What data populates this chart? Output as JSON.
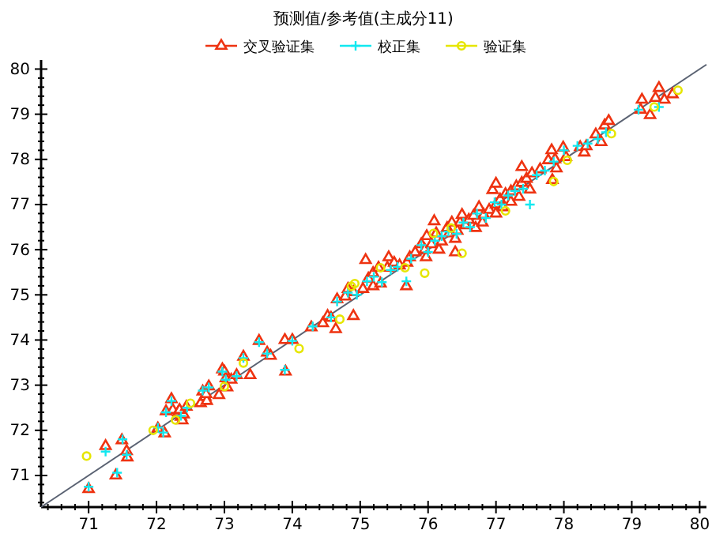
{
  "chart_data": {
    "type": "scatter",
    "title": "预测值/参考值(主成分11)",
    "legend": "top",
    "grid": false,
    "xlim": [
      70.3,
      80.1
    ],
    "ylim": [
      70.3,
      80.2
    ],
    "xticks": [
      {
        "value": 70.4,
        "label": null
      },
      {
        "value": 70.6,
        "label": null
      },
      {
        "value": 70.8,
        "label": null
      },
      71,
      {
        "value": 71.2,
        "label": null
      },
      {
        "value": 71.4,
        "label": null
      },
      {
        "value": 71.6,
        "label": null
      },
      {
        "value": 71.8,
        "label": null
      },
      72,
      {
        "value": 72.2,
        "label": null
      },
      {
        "value": 72.4,
        "label": null
      },
      {
        "value": 72.6,
        "label": null
      },
      {
        "value": 72.8,
        "label": null
      },
      73,
      {
        "value": 73.2,
        "label": null
      },
      {
        "value": 73.4,
        "label": null
      },
      {
        "value": 73.6,
        "label": null
      },
      {
        "value": 73.8,
        "label": null
      },
      74,
      {
        "value": 74.2,
        "label": null
      },
      {
        "value": 74.4,
        "label": null
      },
      {
        "value": 74.6,
        "label": null
      },
      {
        "value": 74.8,
        "label": null
      },
      75,
      {
        "value": 75.2,
        "label": null
      },
      {
        "value": 75.4,
        "label": null
      },
      {
        "value": 75.6,
        "label": null
      },
      {
        "value": 75.8,
        "label": null
      },
      76,
      {
        "value": 76.2,
        "label": null
      },
      {
        "value": 76.4,
        "label": null
      },
      {
        "value": 76.6,
        "label": null
      },
      {
        "value": 76.8,
        "label": null
      },
      77,
      {
        "value": 77.2,
        "label": null
      },
      {
        "value": 77.4,
        "label": null
      },
      {
        "value": 77.6,
        "label": null
      },
      {
        "value": 77.8,
        "label": null
      },
      78,
      {
        "value": 78.2,
        "label": null
      },
      {
        "value": 78.4,
        "label": null
      },
      {
        "value": 78.6,
        "label": null
      },
      {
        "value": 78.8,
        "label": null
      },
      79,
      {
        "value": 79.2,
        "label": null
      },
      {
        "value": 79.4,
        "label": null
      },
      {
        "value": 79.6,
        "label": null
      },
      {
        "value": 79.8,
        "label": null
      },
      80
    ],
    "yticks": [
      {
        "value": 70.4,
        "label": null
      },
      {
        "value": 70.6,
        "label": null
      },
      {
        "value": 70.8,
        "label": null
      },
      71,
      {
        "value": 71.2,
        "label": null
      },
      {
        "value": 71.4,
        "label": null
      },
      {
        "value": 71.6,
        "label": null
      },
      {
        "value": 71.8,
        "label": null
      },
      72,
      {
        "value": 72.2,
        "label": null
      },
      {
        "value": 72.4,
        "label": null
      },
      {
        "value": 72.6,
        "label": null
      },
      {
        "value": 72.8,
        "label": null
      },
      73,
      {
        "value": 73.2,
        "label": null
      },
      {
        "value": 73.4,
        "label": null
      },
      {
        "value": 73.6,
        "label": null
      },
      {
        "value": 73.8,
        "label": null
      },
      74,
      {
        "value": 74.2,
        "label": null
      },
      {
        "value": 74.4,
        "label": null
      },
      {
        "value": 74.6,
        "label": null
      },
      {
        "value": 74.8,
        "label": null
      },
      75,
      {
        "value": 75.2,
        "label": null
      },
      {
        "value": 75.4,
        "label": null
      },
      {
        "value": 75.6,
        "label": null
      },
      {
        "value": 75.8,
        "label": null
      },
      76,
      {
        "value": 76.2,
        "label": null
      },
      {
        "value": 76.4,
        "label": null
      },
      {
        "value": 76.6,
        "label": null
      },
      {
        "value": 76.8,
        "label": null
      },
      77,
      {
        "value": 77.2,
        "label": null
      },
      {
        "value": 77.4,
        "label": null
      },
      {
        "value": 77.6,
        "label": null
      },
      {
        "value": 77.8,
        "label": null
      },
      78,
      {
        "value": 78.2,
        "label": null
      },
      {
        "value": 78.4,
        "label": null
      },
      {
        "value": 78.6,
        "label": null
      },
      {
        "value": 78.8,
        "label": null
      },
      79,
      {
        "value": 79.2,
        "label": null
      },
      {
        "value": 79.4,
        "label": null
      },
      {
        "value": 79.6,
        "label": null
      },
      {
        "value": 79.8,
        "label": null
      },
      80
    ],
    "series": [
      {
        "type": "line",
        "color": "#5a6272",
        "marker": "none",
        "line_style": "solid",
        "x": [
          70.3,
          80.1
        ],
        "values": [
          70.3,
          80.1
        ]
      },
      {
        "name": "交叉验证集",
        "color": "#ee3311",
        "marker": "triangle",
        "x": [
          71.0,
          71.25,
          71.4,
          71.49,
          71.56,
          71.57,
          72.02,
          72.12,
          72.14,
          72.22,
          72.24,
          72.32,
          72.36,
          72.38,
          72.4,
          72.34,
          72.44,
          72.65,
          72.68,
          72.72,
          72.74,
          72.77,
          72.73,
          72.92,
          72.97,
          73.0,
          73.02,
          73.04,
          73.1,
          73.18,
          73.28,
          73.38,
          73.51,
          73.63,
          73.68,
          73.89,
          73.9,
          74.0,
          74.28,
          74.45,
          74.52,
          74.57,
          74.64,
          74.66,
          74.78,
          74.82,
          74.9,
          74.9,
          75.04,
          75.08,
          75.12,
          75.19,
          75.19,
          75.27,
          75.3,
          75.4,
          75.42,
          75.5,
          75.58,
          75.68,
          75.69,
          75.73,
          75.81,
          75.9,
          75.95,
          75.97,
          75.98,
          76.05,
          76.09,
          76.12,
          76.16,
          76.2,
          76.28,
          76.31,
          76.35,
          76.4,
          76.4,
          76.43,
          76.47,
          76.5,
          76.55,
          76.6,
          76.67,
          76.7,
          76.75,
          76.8,
          76.82,
          76.9,
          76.95,
          77.0,
          77.0,
          77.0,
          77.06,
          77.1,
          77.14,
          77.22,
          77.22,
          77.3,
          77.34,
          77.38,
          77.38,
          77.45,
          77.5,
          77.53,
          77.65,
          77.77,
          77.82,
          77.83,
          77.87,
          77.89,
          77.99,
          78.03,
          78.24,
          78.3,
          78.33,
          78.47,
          78.55,
          78.6,
          78.66,
          79.13,
          79.15,
          79.27,
          79.35,
          79.4,
          79.48,
          79.6
        ],
        "values": [
          70.7,
          71.65,
          71.0,
          71.78,
          71.54,
          71.4,
          72.04,
          71.93,
          72.42,
          72.69,
          72.45,
          72.4,
          72.3,
          72.22,
          72.35,
          72.45,
          72.52,
          72.6,
          72.86,
          72.74,
          72.65,
          72.97,
          72.8,
          72.78,
          73.35,
          73.3,
          73.15,
          72.95,
          73.12,
          73.22,
          73.63,
          73.22,
          73.98,
          73.72,
          73.65,
          74.0,
          73.3,
          74.0,
          74.28,
          74.37,
          74.53,
          74.49,
          74.24,
          74.9,
          74.96,
          75.13,
          74.53,
          75.06,
          75.13,
          75.77,
          75.36,
          75.48,
          75.19,
          75.6,
          75.25,
          75.6,
          75.83,
          75.71,
          75.65,
          75.19,
          75.71,
          75.83,
          75.94,
          76.12,
          76.0,
          75.83,
          76.3,
          76.12,
          76.63,
          76.36,
          76.0,
          76.18,
          76.48,
          76.36,
          76.6,
          76.24,
          75.94,
          76.42,
          76.6,
          76.77,
          76.54,
          76.66,
          76.75,
          76.48,
          76.94,
          76.6,
          76.77,
          76.88,
          77.32,
          77.0,
          76.8,
          77.46,
          77.11,
          76.94,
          77.23,
          77.29,
          77.06,
          77.4,
          77.17,
          77.83,
          77.48,
          77.57,
          77.33,
          77.69,
          77.78,
          77.98,
          78.2,
          77.54,
          78.0,
          77.8,
          78.26,
          78.05,
          78.27,
          78.15,
          78.29,
          78.55,
          78.38,
          78.75,
          78.85,
          79.1,
          79.32,
          78.98,
          79.36,
          79.58,
          79.32,
          79.44
        ]
      },
      {
        "name": "校正集",
        "color": "#11e8f0",
        "marker": "cross",
        "x": [
          71.0,
          71.25,
          71.42,
          71.5,
          71.56,
          72.02,
          72.1,
          72.14,
          72.22,
          72.36,
          72.45,
          72.68,
          72.77,
          72.97,
          73.02,
          73.18,
          73.28,
          73.51,
          73.63,
          73.89,
          74.0,
          74.3,
          74.57,
          74.66,
          74.82,
          74.95,
          75.1,
          75.2,
          75.32,
          75.45,
          75.55,
          75.68,
          75.75,
          75.9,
          76.0,
          76.1,
          76.2,
          76.3,
          76.42,
          76.52,
          76.62,
          76.72,
          76.85,
          76.98,
          77.08,
          77.18,
          77.28,
          77.4,
          77.5,
          77.6,
          77.72,
          77.85,
          78.0,
          78.2,
          78.35,
          78.5,
          78.62,
          79.1,
          79.4
        ],
        "values": [
          70.75,
          71.53,
          71.06,
          71.8,
          71.46,
          72.06,
          71.95,
          72.4,
          72.65,
          72.32,
          72.5,
          72.88,
          72.95,
          73.3,
          73.12,
          73.2,
          73.6,
          73.95,
          73.7,
          73.34,
          73.98,
          74.3,
          74.5,
          74.85,
          75.05,
          75.0,
          75.3,
          75.4,
          75.28,
          75.55,
          75.62,
          75.3,
          75.8,
          76.1,
          75.95,
          76.2,
          76.3,
          76.4,
          76.35,
          76.6,
          76.5,
          76.8,
          76.7,
          77.05,
          77.0,
          77.2,
          77.3,
          77.35,
          77.0,
          77.65,
          77.75,
          77.95,
          78.2,
          78.3,
          78.35,
          78.45,
          78.6,
          79.1,
          79.16
        ]
      },
      {
        "name": "验证集",
        "color": "#e6e600",
        "marker": "circle",
        "x": [
          70.97,
          71.95,
          72.28,
          72.5,
          73.0,
          73.28,
          74.1,
          74.7,
          74.87,
          74.92,
          75.3,
          75.66,
          75.95,
          76.08,
          76.34,
          76.5,
          77.14,
          77.85,
          78.05,
          78.7,
          79.33,
          79.68
        ],
        "values": [
          71.43,
          72.0,
          72.23,
          72.6,
          72.97,
          73.49,
          73.81,
          74.46,
          75.19,
          75.25,
          75.6,
          75.6,
          75.48,
          76.36,
          76.48,
          75.92,
          76.86,
          77.51,
          77.98,
          78.57,
          79.16,
          79.53
        ]
      }
    ]
  }
}
